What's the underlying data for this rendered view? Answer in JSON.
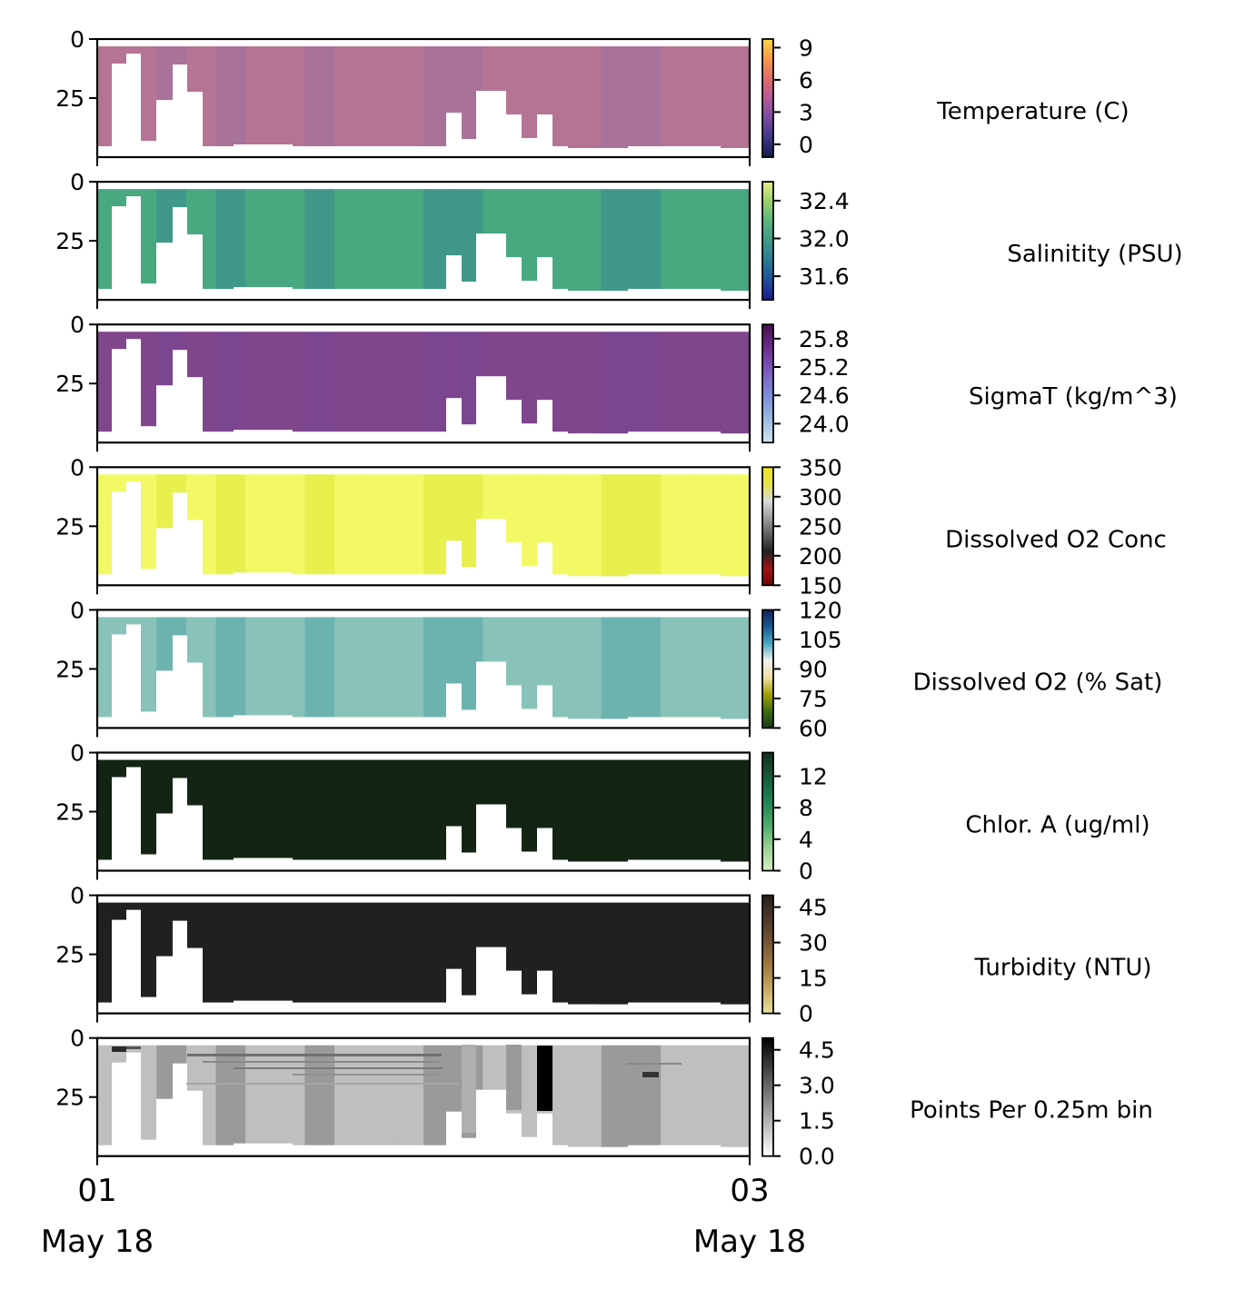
{
  "figure": {
    "x_ticks": [
      {
        "day": "01",
        "month": "May 18"
      },
      {
        "day": "03",
        "month": "May 18"
      }
    ]
  },
  "chart_data": [
    {
      "type": "heatmap",
      "title": "Temperature (C)",
      "y_ticks": [
        "0",
        "25"
      ],
      "ylim": [
        0,
        50
      ],
      "colorbar_ticks": [
        "9",
        "6",
        "3",
        "0"
      ],
      "colorbar_range": [
        -1.2,
        9.8
      ],
      "colors": {
        "field": "#b67494",
        "field_alt": "#a9729a",
        "colorbar": [
          "#141a4a",
          "#3e3788",
          "#7a4aa0",
          "#b55a98",
          "#e46a6a",
          "#f59a48",
          "#f8d84a"
        ]
      }
    },
    {
      "type": "heatmap",
      "title": "Salinitity (PSU)",
      "y_ticks": [
        "0",
        "25"
      ],
      "ylim": [
        0,
        50
      ],
      "colorbar_ticks": [
        "32.4",
        "32.0",
        "31.6"
      ],
      "colorbar_range": [
        31.35,
        32.6
      ],
      "colors": {
        "field": "#48a880",
        "field_alt": "#40988a",
        "colorbar": [
          "#1c1a8c",
          "#1f4f9a",
          "#2a7b94",
          "#40998a",
          "#5ab57c",
          "#98d06a",
          "#e7ee8a"
        ]
      }
    },
    {
      "type": "heatmap",
      "title": "SigmaT (kg/m^3)",
      "y_ticks": [
        "0",
        "25"
      ],
      "ylim": [
        0,
        50
      ],
      "colorbar_ticks": [
        "25.8",
        "25.2",
        "24.6",
        "24.0"
      ],
      "colorbar_range": [
        23.6,
        26.1
      ],
      "colors": {
        "field": "#80468c",
        "field_alt": "#7c4590",
        "colorbar": [
          "#d2e6f0",
          "#9ab9e2",
          "#7c8cd8",
          "#7e5cc0",
          "#6c2d8c",
          "#46104e"
        ]
      }
    },
    {
      "type": "heatmap",
      "title": "Dissolved O2 Conc",
      "y_ticks": [
        "0",
        "25"
      ],
      "ylim": [
        0,
        50
      ],
      "colorbar_ticks": [
        "350",
        "300",
        "250",
        "200",
        "150"
      ],
      "colorbar_range": [
        150,
        350
      ],
      "colors": {
        "field": "#f2f964",
        "field_alt": "#e8f04e",
        "colorbar": [
          "#6e0606",
          "#a21212",
          "#222222",
          "#5e5e5e",
          "#9e9e9e",
          "#dadada",
          "#e6e44a",
          "#f0e020"
        ]
      }
    },
    {
      "type": "heatmap",
      "title": "Dissolved O2 (% Sat)",
      "y_ticks": [
        "0",
        "25"
      ],
      "ylim": [
        0,
        50
      ],
      "colorbar_ticks": [
        "120",
        "105",
        "90",
        "75",
        "60"
      ],
      "colorbar_range": [
        60,
        120
      ],
      "colors": {
        "field": "#88c2b8",
        "field_alt": "#6cb3b0",
        "colorbar": [
          "#183818",
          "#3e6e10",
          "#a4a000",
          "#efe0a4",
          "#f2f2f2",
          "#4aa8c0",
          "#1a5a94",
          "#10205c"
        ]
      }
    },
    {
      "type": "heatmap",
      "title": "Chlor. A (ug/ml)",
      "y_ticks": [
        "0",
        "25"
      ],
      "ylim": [
        0,
        50
      ],
      "colorbar_ticks": [
        "12",
        "8",
        "4",
        "0"
      ],
      "colorbar_range": [
        0,
        15
      ],
      "colors": {
        "field": "#132415",
        "field_alt": "#132415",
        "colorbar": [
          "#d6efc4",
          "#98d090",
          "#48a868",
          "#1e8050",
          "#16583a",
          "#12301e"
        ]
      }
    },
    {
      "type": "heatmap",
      "title": "Turbidity (NTU)",
      "y_ticks": [
        "0",
        "25"
      ],
      "ylim": [
        0,
        50
      ],
      "colorbar_ticks": [
        "45",
        "30",
        "15",
        "0"
      ],
      "colorbar_range": [
        0,
        50
      ],
      "colors": {
        "field": "#22201e",
        "field_alt": "#22201e",
        "colorbar": [
          "#e8e29e",
          "#caa866",
          "#a07a40",
          "#765434",
          "#4c3828",
          "#2a201c"
        ]
      }
    },
    {
      "type": "heatmap",
      "title": "Points Per 0.25m bin",
      "y_ticks": [
        "0",
        "25"
      ],
      "ylim": [
        0,
        50
      ],
      "colorbar_ticks": [
        "4.5",
        "3.0",
        "1.5",
        "0.0"
      ],
      "colorbar_range": [
        0,
        5
      ],
      "colors": {
        "field": "#bfbfbf",
        "field_alt": "#9a9a9a",
        "colorbar": [
          "#ffffff",
          "#cccccc",
          "#999999",
          "#666666",
          "#333333",
          "#000000"
        ]
      }
    }
  ]
}
